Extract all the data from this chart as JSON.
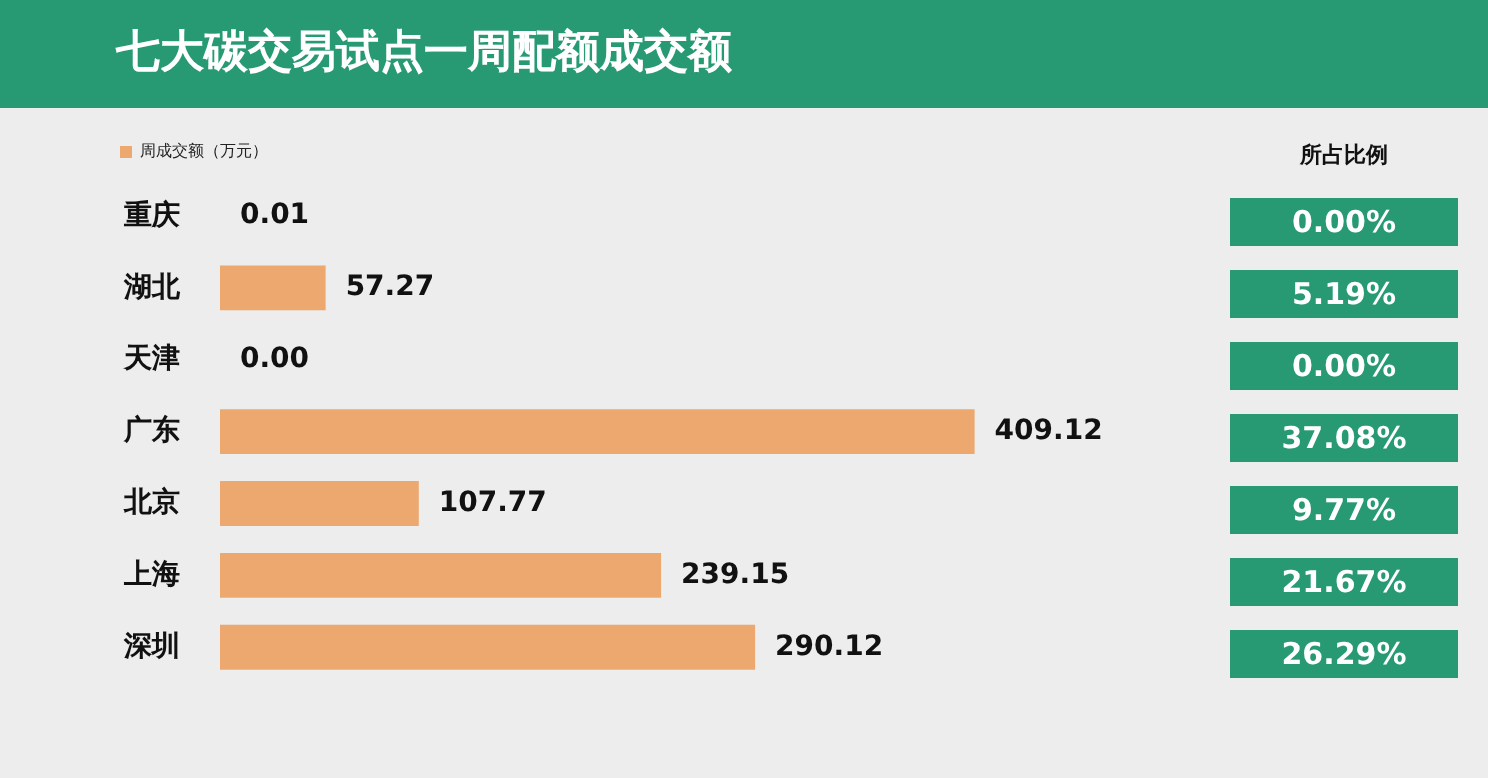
{
  "chart_data": {
    "type": "bar",
    "orientation": "horizontal",
    "title": "七大碳交易试点一周配额成交额",
    "categories": [
      "重庆",
      "湖北",
      "天津",
      "广东",
      "北京",
      "上海",
      "深圳"
    ],
    "series": [
      {
        "name": "周成交额（万元）",
        "color": "#eca86e",
        "values": [
          0.01,
          57.27,
          0.0,
          409.12,
          107.77,
          239.15,
          290.12
        ],
        "value_labels": [
          "0.01",
          "57.27",
          "0.00",
          "409.12",
          "107.77",
          "239.15",
          "290.12"
        ]
      }
    ],
    "legend": "top left",
    "annotations": [
      "所占比例",
      "0.00%",
      "5.19%",
      "0.00%",
      "37.08%",
      "9.77%",
      "21.67%",
      "26.29%"
    ]
  }
}
